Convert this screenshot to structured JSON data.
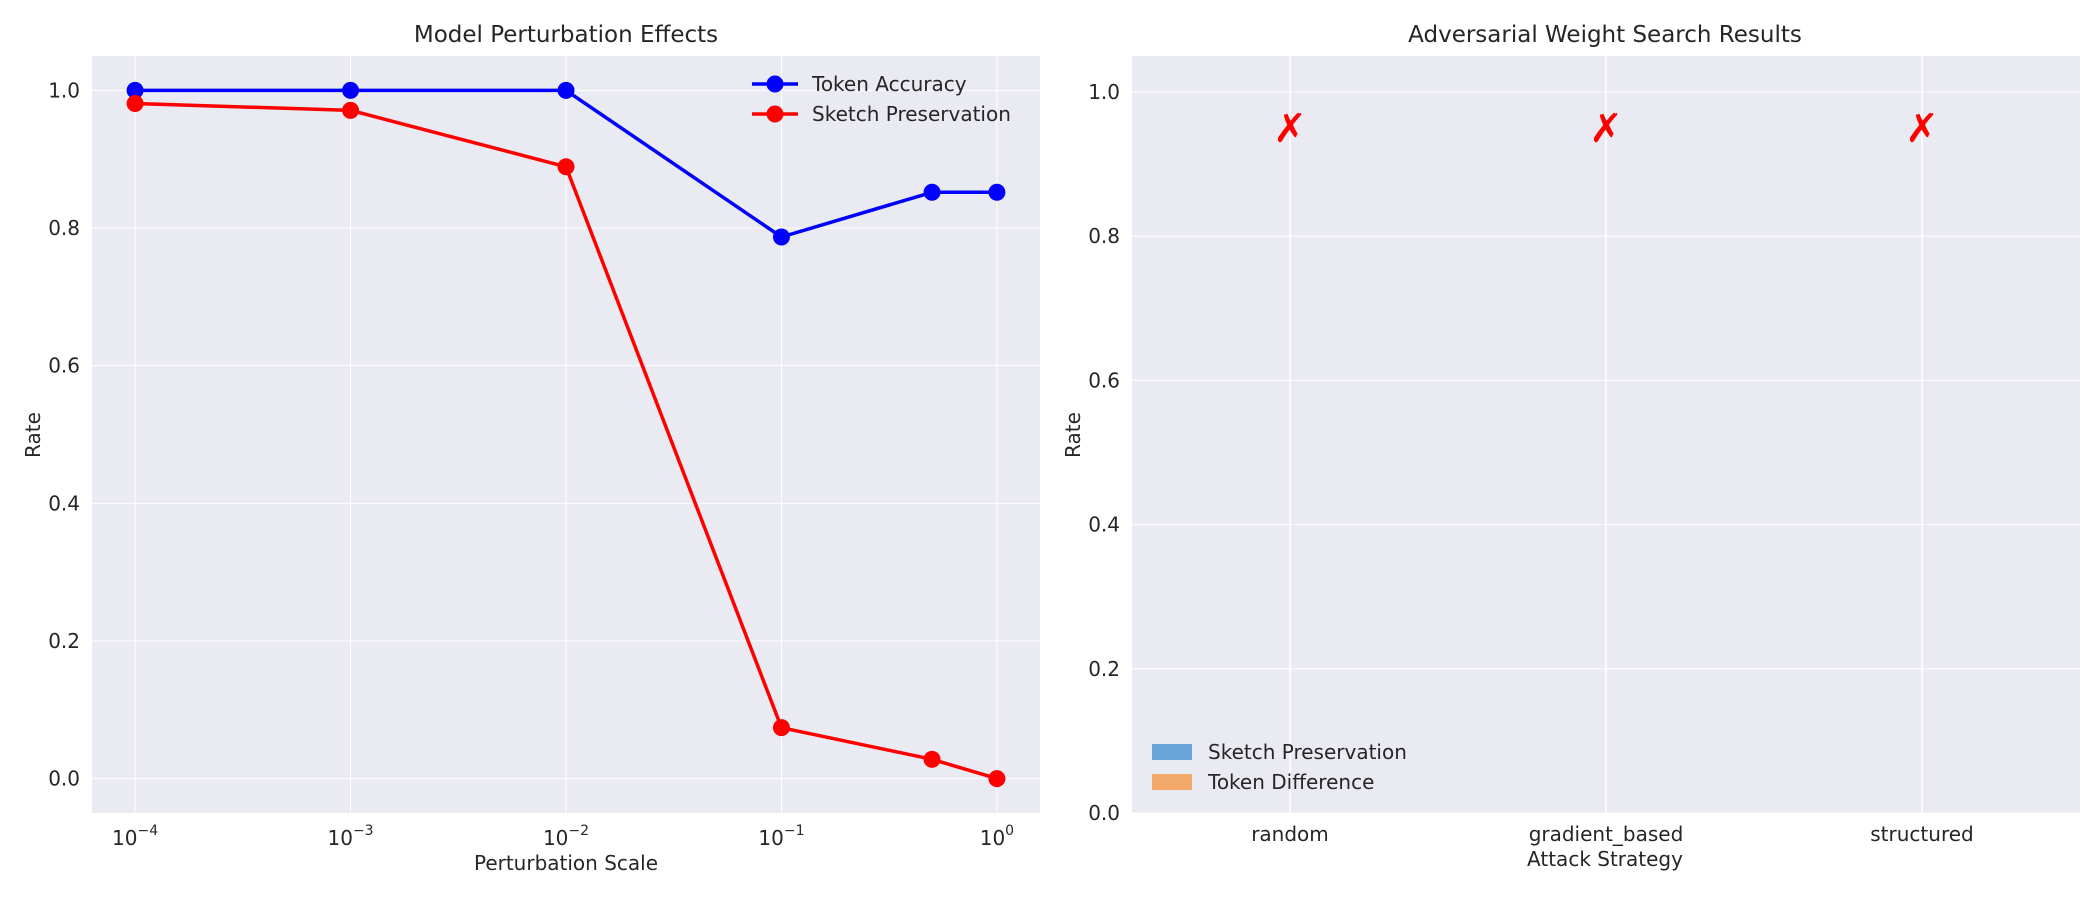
{
  "chart_data": [
    {
      "type": "line",
      "title": "Model Perturbation Effects",
      "xlabel": "Perturbation Scale",
      "ylabel": "Rate",
      "xscale": "log",
      "x": [
        0.0001,
        0.001,
        0.01,
        0.1,
        0.5,
        1.0
      ],
      "xtick_labels": [
        {
          "base": "10",
          "exp": "−4"
        },
        {
          "base": "10",
          "exp": "−3"
        },
        {
          "base": "10",
          "exp": "−2"
        },
        {
          "base": "10",
          "exp": "−1"
        },
        {
          "base": "10",
          "exp": "0"
        }
      ],
      "yticks": [
        "0.0",
        "0.2",
        "0.4",
        "0.6",
        "0.8",
        "1.0"
      ],
      "ylim": [
        -0.05,
        1.05
      ],
      "grid": true,
      "legend_position": "upper right",
      "series": [
        {
          "name": "Token Accuracy",
          "color": "#0000ff",
          "values": [
            1.0,
            1.0,
            1.0,
            0.787,
            0.852,
            0.852
          ]
        },
        {
          "name": "Sketch Preservation",
          "color": "#ff0000",
          "values": [
            0.981,
            0.971,
            0.889,
            0.074,
            0.028,
            0.0
          ]
        }
      ]
    },
    {
      "type": "bar",
      "title": "Adversarial Weight Search Results",
      "xlabel": "Attack Strategy",
      "ylabel": "Rate",
      "categories": [
        "random",
        "gradient_based",
        "structured"
      ],
      "yticks": [
        "0.0",
        "0.2",
        "0.4",
        "0.6",
        "0.8",
        "1.0"
      ],
      "ylim": [
        0,
        1.05
      ],
      "grid": true,
      "legend_position": "lower left",
      "series": [
        {
          "name": "Sketch Preservation",
          "color": "#5b9bd5",
          "values": [
            0,
            0,
            0
          ]
        },
        {
          "name": "Token Difference",
          "color": "#f4a25b",
          "values": [
            0,
            0,
            0
          ]
        }
      ],
      "markers": {
        "symbol": "✗",
        "color": "#ff0000",
        "y": 0.95
      }
    }
  ]
}
